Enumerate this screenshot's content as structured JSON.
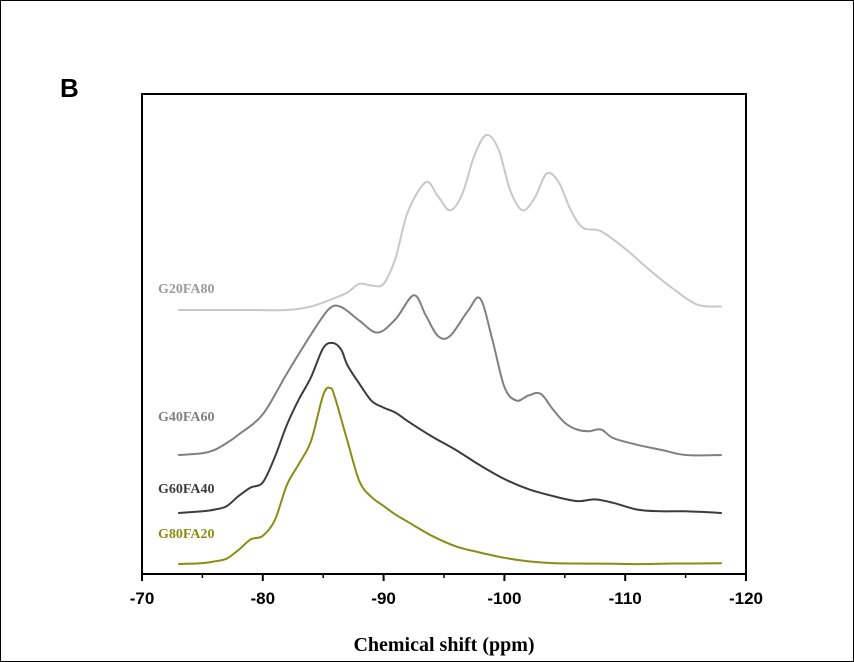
{
  "chart_data": {
    "type": "line",
    "panel_label": "B",
    "title": "",
    "xlabel": "Chemical shift (ppm)",
    "ylabel": "",
    "xlim": [
      -70,
      -120
    ],
    "x_ticks": [
      "-70",
      "-80",
      "-90",
      "-100",
      "-110",
      "-120"
    ],
    "y_ticks": [],
    "grid": false,
    "legend": "inline labels at left of each trace",
    "series": [
      {
        "name": "G80FA20",
        "color": "#8c8c14",
        "points": [
          [
            -73,
            0.0
          ],
          [
            -75,
            0.005
          ],
          [
            -76,
            0.015
          ],
          [
            -77,
            0.03
          ],
          [
            -78,
            0.08
          ],
          [
            -79,
            0.14
          ],
          [
            -80,
            0.16
          ],
          [
            -81,
            0.25
          ],
          [
            -82,
            0.45
          ],
          [
            -83,
            0.57
          ],
          [
            -84,
            0.7
          ],
          [
            -85,
            0.96
          ],
          [
            -85.6,
            1.0
          ],
          [
            -86,
            0.94
          ],
          [
            -87,
            0.7
          ],
          [
            -88,
            0.47
          ],
          [
            -89,
            0.38
          ],
          [
            -90,
            0.33
          ],
          [
            -91,
            0.28
          ],
          [
            -92,
            0.24
          ],
          [
            -94,
            0.16
          ],
          [
            -96,
            0.1
          ],
          [
            -98,
            0.065
          ],
          [
            -100,
            0.035
          ],
          [
            -102,
            0.015
          ],
          [
            -104,
            0.005
          ],
          [
            -106,
            0.003
          ],
          [
            -108,
            0.002
          ],
          [
            -110,
            0.0
          ],
          [
            -112,
            0.0
          ],
          [
            -114,
            0.003
          ],
          [
            -116,
            0.003
          ],
          [
            -118,
            0.004
          ]
        ]
      },
      {
        "name": "G60FA40",
        "color": "#3c3c3c",
        "points": [
          [
            -73,
            0.0
          ],
          [
            -75,
            0.01
          ],
          [
            -76,
            0.02
          ],
          [
            -77,
            0.04
          ],
          [
            -78,
            0.1
          ],
          [
            -79,
            0.15
          ],
          [
            -80,
            0.18
          ],
          [
            -81,
            0.33
          ],
          [
            -82,
            0.52
          ],
          [
            -83,
            0.67
          ],
          [
            -84,
            0.8
          ],
          [
            -85,
            0.97
          ],
          [
            -85.8,
            1.0
          ],
          [
            -86.5,
            0.96
          ],
          [
            -87,
            0.87
          ],
          [
            -88,
            0.76
          ],
          [
            -89,
            0.66
          ],
          [
            -90,
            0.62
          ],
          [
            -91,
            0.59
          ],
          [
            -92,
            0.54
          ],
          [
            -94,
            0.45
          ],
          [
            -96,
            0.37
          ],
          [
            -98,
            0.28
          ],
          [
            -100,
            0.2
          ],
          [
            -102,
            0.14
          ],
          [
            -104,
            0.1
          ],
          [
            -106,
            0.07
          ],
          [
            -107.5,
            0.08
          ],
          [
            -109,
            0.06
          ],
          [
            -111,
            0.02
          ],
          [
            -113,
            0.01
          ],
          [
            -115,
            0.01
          ],
          [
            -118,
            0.0
          ]
        ]
      },
      {
        "name": "G40FA60",
        "color": "#808080",
        "points": [
          [
            -73,
            0.0
          ],
          [
            -75,
            0.01
          ],
          [
            -76,
            0.03
          ],
          [
            -77,
            0.07
          ],
          [
            -78,
            0.12
          ],
          [
            -80,
            0.24
          ],
          [
            -82,
            0.48
          ],
          [
            -84,
            0.71
          ],
          [
            -85.5,
            0.86
          ],
          [
            -86.5,
            0.87
          ],
          [
            -88,
            0.79
          ],
          [
            -89.5,
            0.72
          ],
          [
            -91,
            0.8
          ],
          [
            -92.5,
            0.94
          ],
          [
            -93.5,
            0.82
          ],
          [
            -94.5,
            0.7
          ],
          [
            -95.5,
            0.7
          ],
          [
            -97,
            0.85
          ],
          [
            -98,
            0.92
          ],
          [
            -99,
            0.68
          ],
          [
            -100,
            0.4
          ],
          [
            -101,
            0.32
          ],
          [
            -102,
            0.35
          ],
          [
            -103,
            0.36
          ],
          [
            -104,
            0.27
          ],
          [
            -105,
            0.19
          ],
          [
            -106,
            0.15
          ],
          [
            -107,
            0.14
          ],
          [
            -108,
            0.15
          ],
          [
            -109,
            0.1
          ],
          [
            -111,
            0.06
          ],
          [
            -113,
            0.03
          ],
          [
            -115,
            0.0
          ],
          [
            -118,
            0.0
          ]
        ]
      },
      {
        "name": "G20FA80",
        "color": "#c8c8c8",
        "points": [
          [
            -73,
            0.0
          ],
          [
            -75,
            0.0
          ],
          [
            -77,
            0.0
          ],
          [
            -79,
            0.0
          ],
          [
            -82,
            0.0
          ],
          [
            -84,
            0.02
          ],
          [
            -86,
            0.07
          ],
          [
            -87,
            0.1
          ],
          [
            -88,
            0.15
          ],
          [
            -89,
            0.14
          ],
          [
            -90,
            0.15
          ],
          [
            -91,
            0.3
          ],
          [
            -92,
            0.56
          ],
          [
            -93.5,
            0.73
          ],
          [
            -94.5,
            0.65
          ],
          [
            -95.5,
            0.57
          ],
          [
            -96.5,
            0.66
          ],
          [
            -97.5,
            0.88
          ],
          [
            -98.5,
            1.0
          ],
          [
            -99.5,
            0.92
          ],
          [
            -100.5,
            0.68
          ],
          [
            -101.5,
            0.57
          ],
          [
            -102.5,
            0.64
          ],
          [
            -103.5,
            0.78
          ],
          [
            -104.5,
            0.73
          ],
          [
            -105.5,
            0.57
          ],
          [
            -106.5,
            0.47
          ],
          [
            -108,
            0.45
          ],
          [
            -110,
            0.35
          ],
          [
            -112,
            0.23
          ],
          [
            -114,
            0.12
          ],
          [
            -116,
            0.03
          ],
          [
            -118,
            0.02
          ]
        ]
      }
    ]
  }
}
